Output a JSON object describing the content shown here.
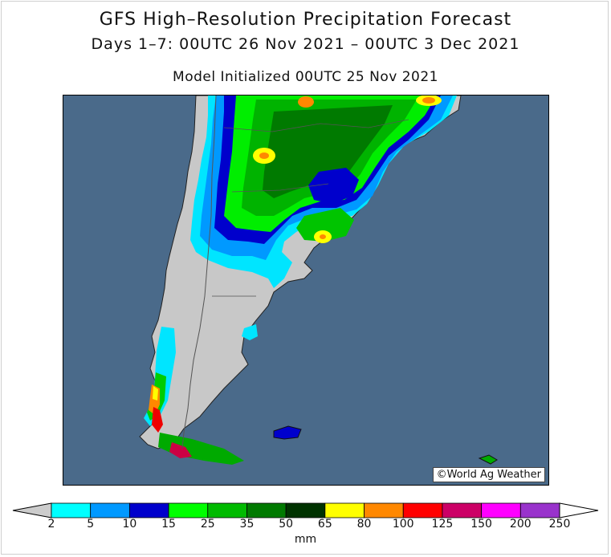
{
  "header": {
    "title": "GFS High–Resolution Precipitation Forecast",
    "subtitle": "Days 1–7: 00UTC 26 Nov 2021 – 00UTC 3 Dec 2021",
    "init": "Model Initialized 00UTC 25 Nov 2021"
  },
  "credit": "©World Ag Weather",
  "legend": {
    "unit": "mm",
    "ticks": [
      "2",
      "5",
      "10",
      "15",
      "25",
      "35",
      "50",
      "65",
      "80",
      "100",
      "125",
      "150",
      "200",
      "250"
    ],
    "colors": [
      "#00ffff",
      "#0099ff",
      "#0000cc",
      "#00ff00",
      "#00bb00",
      "#007a00",
      "#003300",
      "#ffff00",
      "#ff8800",
      "#ff0000",
      "#cc0066",
      "#ff00ff",
      "#9933cc"
    ],
    "below_color": "#cccccc",
    "above_color": "#ffffff"
  },
  "colors": {
    "ocean": "#4a6a8a",
    "land_dry": "#c8c8c8",
    "border": "#555555"
  }
}
